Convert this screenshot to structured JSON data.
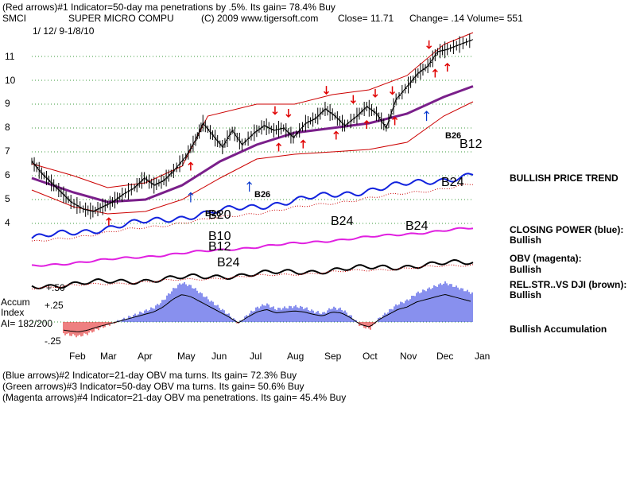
{
  "header": {
    "line1": "(Red arrows)#1 Indicator=50-day ma penetrations by .5%.  Its gain= 78.4% Buy",
    "symbol": "SMCI",
    "company": "SUPER MICRO COMPU",
    "copyright": "(C) 2009 www.tigersoft.com",
    "close_text": "Close=  11.71",
    "change_text": "Change= .14 Volume= 551",
    "date_range": "1/ 12/ 9-1/8/10"
  },
  "footer": {
    "line1": "(Blue arrows)#2 Indicator=21-day OBV ma turns.  Its gain= 72.3% Buy",
    "line2": "(Green arrows)#3 Indicator=50-day OBV ma turns.  Its gain= 50.6% Buy",
    "line3": "(Magenta arrows)#4 Indicator=21-day OBV ma penetrations.  Its gain= 45.4% Buy"
  },
  "side_labels": {
    "price_trend": "BULLISH PRICE TREND",
    "closing_power": "CLOSING POWER (blue):",
    "closing_power_status": "Bullish",
    "obv": "OBV (magenta):",
    "obv_status": "Bullish",
    "relstr": "REL.STR..VS DJI (brown):",
    "relstr_status": "Bullish",
    "accumulation": "Bullish Accumulation"
  },
  "accum": {
    "title1": "Accum",
    "title2": "Index",
    "ai_text": "AI= 182/200",
    "ticks": [
      "+.50",
      "+.25",
      "-.25"
    ]
  },
  "signal_labels": [
    "B26",
    "B26",
    "B20",
    "B10",
    "B12",
    "B24",
    "B24",
    "B24",
    "B24",
    "B26",
    "B12"
  ],
  "chart_data": {
    "type": "line",
    "title": "SUPER MICRO COMPU",
    "price_axis_ticks": [
      "11",
      "10",
      "9",
      "8",
      "7",
      "6",
      "5",
      "4"
    ],
    "x_ticks": [
      "Feb",
      "Mar",
      "Apr",
      "May",
      "Jun",
      "Jul",
      "Aug",
      "Sep",
      "Oct",
      "Nov",
      "Dec",
      "Jan"
    ],
    "price_points": [
      [
        "2009-01-12",
        6.6
      ],
      [
        "2009-01-20",
        6.1
      ],
      [
        "2009-01-28",
        5.7
      ],
      [
        "2009-02-05",
        5.3
      ],
      [
        "2009-02-13",
        4.9
      ],
      [
        "2009-02-23",
        4.6
      ],
      [
        "2009-03-03",
        4.5
      ],
      [
        "2009-03-11",
        4.7
      ],
      [
        "2009-03-19",
        4.9
      ],
      [
        "2009-03-27",
        5.2
      ],
      [
        "2009-04-06",
        5.5
      ],
      [
        "2009-04-14",
        5.9
      ],
      [
        "2009-04-22",
        5.6
      ],
      [
        "2009-04-30",
        5.8
      ],
      [
        "2009-05-08",
        6.2
      ],
      [
        "2009-05-18",
        6.8
      ],
      [
        "2009-05-26",
        7.5
      ],
      [
        "2009-06-01",
        8.2
      ],
      [
        "2009-06-09",
        7.7
      ],
      [
        "2009-06-17",
        7.2
      ],
      [
        "2009-06-25",
        7.9
      ],
      [
        "2009-07-03",
        7.3
      ],
      [
        "2009-07-13",
        7.8
      ],
      [
        "2009-07-21",
        8.1
      ],
      [
        "2009-07-29",
        7.9
      ],
      [
        "2009-08-06",
        8.0
      ],
      [
        "2009-08-14",
        7.6
      ],
      [
        "2009-08-24",
        8.2
      ],
      [
        "2009-09-01",
        8.4
      ],
      [
        "2009-09-09",
        8.8
      ],
      [
        "2009-09-17",
        8.5
      ],
      [
        "2009-09-25",
        8.1
      ],
      [
        "2009-10-05",
        8.5
      ],
      [
        "2009-10-13",
        8.9
      ],
      [
        "2009-10-21",
        8.6
      ],
      [
        "2009-10-29",
        8.0
      ],
      [
        "2009-11-06",
        9.2
      ],
      [
        "2009-11-16",
        9.8
      ],
      [
        "2009-11-24",
        10.3
      ],
      [
        "2009-12-02",
        10.6
      ],
      [
        "2009-12-10",
        11.2
      ],
      [
        "2009-12-18",
        11.3
      ],
      [
        "2009-12-28",
        11.5
      ],
      [
        "2010-01-08",
        11.71
      ]
    ],
    "ma50_points": [
      [
        "2009-01-12",
        5.9
      ],
      [
        "2009-02-15",
        5.3
      ],
      [
        "2009-03-15",
        4.9
      ],
      [
        "2009-04-15",
        5.0
      ],
      [
        "2009-05-15",
        5.6
      ],
      [
        "2009-06-15",
        6.6
      ],
      [
        "2009-07-15",
        7.3
      ],
      [
        "2009-08-15",
        7.8
      ],
      [
        "2009-09-15",
        8.0
      ],
      [
        "2009-10-15",
        8.2
      ],
      [
        "2009-11-15",
        8.6
      ],
      [
        "2009-12-15",
        9.3
      ],
      [
        "2010-01-08",
        9.75
      ]
    ],
    "upper_band_points": [
      [
        "2009-01-12",
        6.5
      ],
      [
        "2009-02-15",
        6.0
      ],
      [
        "2009-03-15",
        5.5
      ],
      [
        "2009-04-15",
        5.7
      ],
      [
        "2009-05-15",
        6.4
      ],
      [
        "2009-06-05",
        8.5
      ],
      [
        "2009-07-15",
        9.0
      ],
      [
        "2009-08-15",
        9.0
      ],
      [
        "2009-09-15",
        9.4
      ],
      [
        "2009-10-15",
        9.6
      ],
      [
        "2009-11-15",
        10.2
      ],
      [
        "2009-12-15",
        11.5
      ],
      [
        "2010-01-08",
        12.0
      ]
    ],
    "lower_band_points": [
      [
        "2009-01-12",
        5.4
      ],
      [
        "2009-02-15",
        4.7
      ],
      [
        "2009-03-15",
        4.4
      ],
      [
        "2009-04-15",
        4.5
      ],
      [
        "2009-05-15",
        5.0
      ],
      [
        "2009-06-15",
        5.9
      ],
      [
        "2009-07-15",
        6.7
      ],
      [
        "2009-08-15",
        6.9
      ],
      [
        "2009-09-15",
        7.0
      ],
      [
        "2009-10-15",
        7.1
      ],
      [
        "2009-11-15",
        7.4
      ],
      [
        "2009-12-15",
        8.5
      ],
      [
        "2010-01-08",
        9.1
      ]
    ],
    "red_arrows": [
      {
        "date": "2009-03-16",
        "dir": "up"
      },
      {
        "date": "2009-05-22",
        "dir": "up"
      },
      {
        "date": "2009-08-02",
        "dir": "up"
      },
      {
        "date": "2009-08-22",
        "dir": "up"
      },
      {
        "date": "2009-09-18",
        "dir": "up"
      },
      {
        "date": "2009-10-13",
        "dir": "up"
      },
      {
        "date": "2009-11-05",
        "dir": "up"
      },
      {
        "date": "2009-12-08",
        "dir": "up"
      },
      {
        "date": "2009-12-18",
        "dir": "up"
      },
      {
        "date": "2009-07-30",
        "dir": "down"
      },
      {
        "date": "2009-08-10",
        "dir": "down"
      },
      {
        "date": "2009-09-10",
        "dir": "down"
      },
      {
        "date": "2009-10-02",
        "dir": "down"
      },
      {
        "date": "2009-10-20",
        "dir": "down"
      },
      {
        "date": "2009-11-03",
        "dir": "down"
      },
      {
        "date": "2009-12-03",
        "dir": "down"
      }
    ],
    "blue_arrows": [
      {
        "date": "2009-05-22",
        "label": "B20"
      },
      {
        "date": "2009-07-09",
        "label": "B26"
      },
      {
        "date": "2009-12-01",
        "label": "B26"
      }
    ],
    "accumulation_index": [
      -0.05,
      -0.1,
      -0.12,
      -0.15,
      -0.18,
      -0.2,
      -0.16,
      -0.1,
      -0.05,
      0.0,
      0.05,
      0.1,
      0.15,
      0.2,
      0.3,
      0.45,
      0.55,
      0.5,
      0.4,
      0.3,
      0.2,
      0.1,
      -0.02,
      0.1,
      0.2,
      0.25,
      0.18,
      0.2,
      0.22,
      0.2,
      0.15,
      0.12,
      0.2,
      0.18,
      0.08,
      -0.05,
      -0.1,
      0.05,
      0.15,
      0.25,
      0.3,
      0.4,
      0.45,
      0.5,
      0.55,
      0.5,
      0.45,
      0.4
    ]
  }
}
